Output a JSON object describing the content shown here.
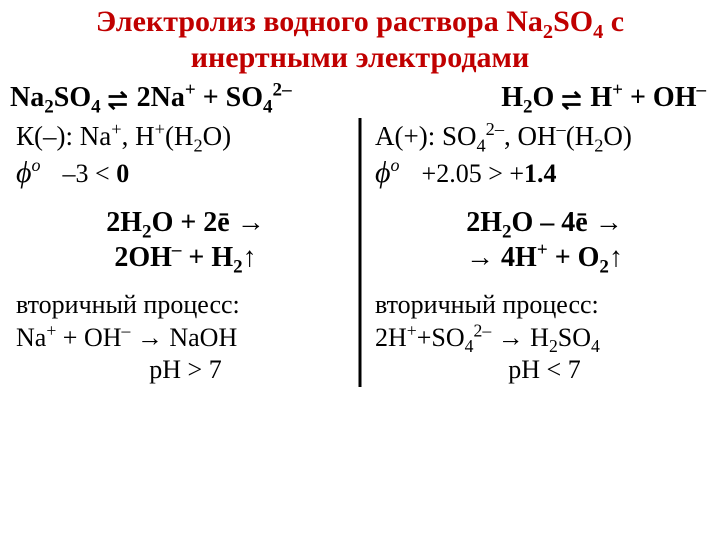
{
  "title_line1": "Электролиз водного раствора Na",
  "title_sub1": "2",
  "title_mid": "SO",
  "title_sub2": "4",
  "title_end": " c",
  "title_line2": "инертными электродами",
  "disso_left_a": "Na",
  "disso_left_sub1": "2",
  "disso_left_b": "SO",
  "disso_left_sub2": "4",
  "disso_left_c": " 2Na",
  "disso_left_sup1": "+",
  "disso_left_d": " + SO",
  "disso_left_sub3": "4",
  "disso_left_sup2": "2–",
  "disso_right_a": "H",
  "disso_right_sub1": "2",
  "disso_right_b": "O ",
  "disso_right_c": " H",
  "disso_right_sup1": "+",
  "disso_right_d": " + OH",
  "disso_right_sup2": "–",
  "cathode_label_a": "К(–): Na",
  "cathode_sup1": "+",
  "cathode_label_b": ", H",
  "cathode_sup2": "+",
  "cathode_label_c": "(H",
  "cathode_sub1": "2",
  "cathode_label_d": "O)",
  "phi_symbol": "ϕ",
  "phi_sup": "o",
  "cathode_phi_val_a": "–3 < ",
  "cathode_phi_val_b": "0",
  "cathode_rxn_l1a": "2H",
  "cathode_rxn_sub1": "2",
  "cathode_rxn_l1b": "O + 2ē →",
  "cathode_rxn_l2a": "2OH",
  "cathode_rxn_sup1": "–",
  "cathode_rxn_l2b": " + H",
  "cathode_rxn_sub2": "2",
  "cathode_rxn_l2c": "↑",
  "cathode_sec_label": "вторичный процесс:",
  "cathode_sec_a": "Na",
  "cathode_sec_sup1": "+",
  "cathode_sec_b": " + OH",
  "cathode_sec_sup2": "–",
  "cathode_sec_c": " → NaOH",
  "cathode_ph": "pH > 7",
  "anode_label_a": "А(+): SO",
  "anode_sub1": "4",
  "anode_sup1": "2–",
  "anode_label_b": ", OH",
  "anode_sup2": "–",
  "anode_label_c": "(H",
  "anode_sub2": "2",
  "anode_label_d": "O)",
  "anode_phi_val_a": "+2.05 > +",
  "anode_phi_val_b": "1.4",
  "anode_rxn_l1a": "2H",
  "anode_rxn_sub1": "2",
  "anode_rxn_l1b": "O – 4ē →",
  "anode_rxn_l2a": "→ 4H",
  "anode_rxn_sup1": "+",
  "anode_rxn_l2b": " + O",
  "anode_rxn_sub2": "2",
  "anode_rxn_l2c": "↑",
  "anode_sec_label": "вторичный процесс:",
  "anode_sec_a": "2H",
  "anode_sec_sup1": "+",
  "anode_sec_b": "+SO",
  "anode_sec_sub1": "4",
  "anode_sec_sup2": "2–",
  "anode_sec_c": " → H",
  "anode_sec_sub2": "2",
  "anode_sec_d": "SO",
  "anode_sec_sub3": "4",
  "anode_ph": "pH < 7"
}
